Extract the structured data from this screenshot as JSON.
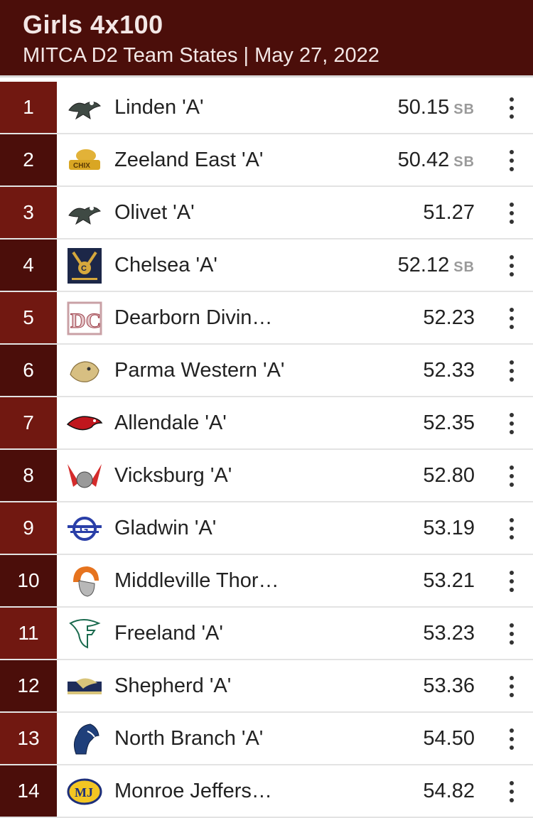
{
  "header": {
    "title": "Girls 4x100",
    "subtitle": "MITCA D2 Team States | May 27, 2022",
    "background": "#4b0e0a"
  },
  "results": [
    {
      "rank": "1",
      "team": "Linden 'A'",
      "mark": "50.15",
      "badge": "SB",
      "logo_icon": "eagle-logo-icon"
    },
    {
      "rank": "2",
      "team": "Zeeland East 'A'",
      "mark": "50.42",
      "badge": "SB",
      "logo_icon": "chix-logo-icon"
    },
    {
      "rank": "3",
      "team": "Olivet 'A'",
      "mark": "51.27",
      "badge": "",
      "logo_icon": "eagle-logo-icon"
    },
    {
      "rank": "4",
      "team": "Chelsea 'A'",
      "mark": "52.12",
      "badge": "SB",
      "logo_icon": "chelsea-track-logo-icon"
    },
    {
      "rank": "5",
      "team": "Dearborn Divin…",
      "mark": "52.23",
      "badge": "",
      "logo_icon": "dc-logo-icon"
    },
    {
      "rank": "6",
      "team": "Parma Western 'A'",
      "mark": "52.33",
      "badge": "",
      "logo_icon": "panther-logo-icon"
    },
    {
      "rank": "7",
      "team": "Allendale 'A'",
      "mark": "52.35",
      "badge": "",
      "logo_icon": "falcon-logo-icon"
    },
    {
      "rank": "8",
      "team": "Vicksburg 'A'",
      "mark": "52.80",
      "badge": "",
      "logo_icon": "bulldog-logo-icon"
    },
    {
      "rank": "9",
      "team": "Gladwin 'A'",
      "mark": "53.19",
      "badge": "",
      "logo_icon": "g-logo-icon"
    },
    {
      "rank": "10",
      "team": "Middleville Thor…",
      "mark": "53.21",
      "badge": "",
      "logo_icon": "trojan-logo-icon"
    },
    {
      "rank": "11",
      "team": "Freeland 'A'",
      "mark": "53.23",
      "badge": "",
      "logo_icon": "f-logo-icon"
    },
    {
      "rank": "12",
      "team": "Shepherd 'A'",
      "mark": "53.36",
      "badge": "",
      "logo_icon": "bluejay-logo-icon"
    },
    {
      "rank": "13",
      "team": "North Branch 'A'",
      "mark": "54.50",
      "badge": "",
      "logo_icon": "bronco-logo-icon"
    },
    {
      "rank": "14",
      "team": "Monroe Jeffers…",
      "mark": "54.82",
      "badge": "",
      "logo_icon": "jefferson-logo-icon"
    }
  ]
}
